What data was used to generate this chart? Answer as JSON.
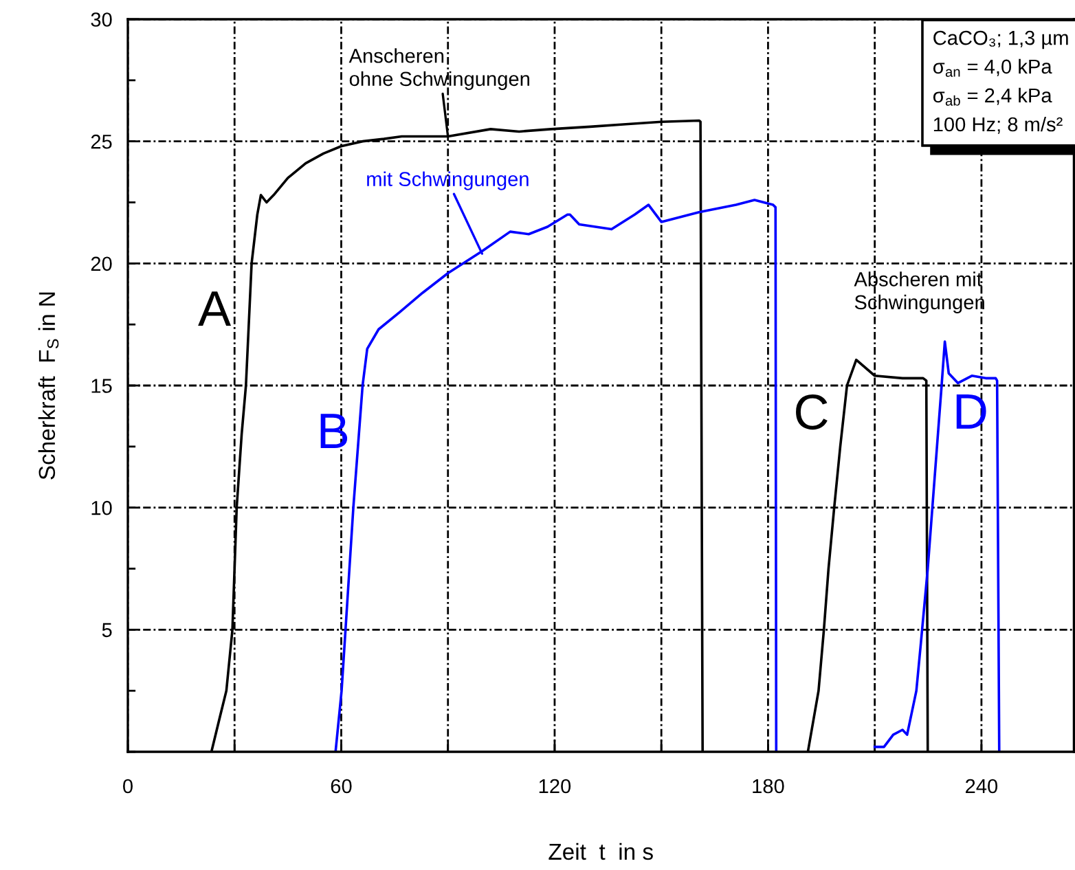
{
  "chart_data": {
    "type": "line",
    "xlabel": "Zeit  t  in s",
    "ylabel": "Scherkraft  F$_{S}$ in N",
    "series": [
      {
        "name": "A",
        "color": "#000000",
        "x": [
          23.5,
          26,
          27.7,
          29.4,
          30.6,
          32,
          33.2,
          34.8,
          36.4,
          37.4,
          39,
          41,
          45,
          50,
          55,
          60,
          66,
          72,
          77,
          90,
          102,
          110,
          119,
          130,
          140,
          150,
          160.6,
          161,
          161.6
        ],
        "values": [
          0,
          1.5,
          2.5,
          5,
          10,
          13,
          15,
          20,
          22,
          22.8,
          22.5,
          22.8,
          23.5,
          24.1,
          24.5,
          24.8,
          25.0,
          25.1,
          25.2,
          25.2,
          25.5,
          25.4,
          25.5,
          25.6,
          25.7,
          25.8,
          25.85,
          25.8,
          0
        ]
      },
      {
        "name": "B",
        "color": "#0000ff",
        "x": [
          58.4,
          60.1,
          61.2,
          63.4,
          64.7,
          66,
          67.3,
          70.5,
          76.4,
          82.9,
          90,
          99.6,
          107.5,
          112.7,
          118,
          123.6,
          124.3,
          126.9,
          136,
          142.5,
          146.4,
          150,
          160.6,
          171,
          176.2,
          181.4,
          182.1,
          182.3
        ],
        "values": [
          0,
          2.5,
          5,
          10,
          12.5,
          15,
          16.5,
          17.3,
          18,
          18.8,
          19.6,
          20.5,
          21.3,
          21.2,
          21.5,
          22.0,
          22.0,
          21.6,
          21.4,
          22.0,
          22.4,
          21.7,
          22.1,
          22.4,
          22.6,
          22.4,
          22.3,
          0
        ]
      },
      {
        "name": "C",
        "color": "#000000",
        "x": [
          191.2,
          194.2,
          195.7,
          197,
          198.6,
          200.3,
          202.2,
          204.8,
          210,
          217.8,
          223.6,
          224.5,
          224.9
        ],
        "values": [
          0,
          2.5,
          5,
          7.5,
          10,
          12.5,
          15,
          16.05,
          15.4,
          15.3,
          15.3,
          15.2,
          0
        ]
      },
      {
        "name": "D",
        "color": "#0000ff",
        "x": [
          210,
          212.6,
          215.2,
          217.8,
          219.1,
          221.7,
          223,
          224.9,
          226.2,
          227.5,
          228.8,
          229.7,
          230.8,
          233.4,
          237.3,
          241.2,
          244,
          244.4,
          245
        ],
        "values": [
          0.2,
          0.2,
          0.7,
          0.9,
          0.7,
          2.5,
          4.5,
          7.5,
          10,
          12.5,
          15,
          16.8,
          15.5,
          15.1,
          15.4,
          15.3,
          15.3,
          15.2,
          0
        ]
      }
    ],
    "xlim": [
      0,
      266
    ],
    "ylim": [
      0,
      30
    ],
    "xticks": [
      0,
      {
        "value": 30,
        "label": null
      },
      60,
      {
        "value": 90,
        "label": null
      },
      120,
      {
        "value": 150,
        "label": null
      },
      180,
      {
        "value": 210,
        "label": null
      },
      240
    ],
    "yticks": [
      5,
      10,
      15,
      20,
      25,
      30
    ],
    "grid": true,
    "legend": false,
    "marker": "none",
    "line_style": "solid",
    "annotations": [
      {
        "text": "Anscheren\nohne Schwingungen",
        "x": 90,
        "y": 25.2
      },
      {
        "text": "mit Schwingungen",
        "x": 99.6,
        "y": 20.4
      },
      "Abscheren mit\nSchwingungen",
      "CaCO₃; 1,3 µm\nσ$_{an}$ = 4,0 kPa\nσ$_{ab}$ = 2,4 kPa\n100 Hz; 8 m/s²"
    ]
  }
}
